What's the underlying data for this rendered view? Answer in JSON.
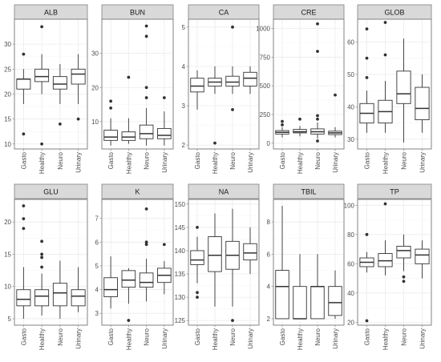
{
  "chart_data": [
    {
      "type": "box",
      "title": "ALB",
      "ylim": [
        9,
        35
      ],
      "yticks": [
        10,
        15,
        20,
        25,
        30
      ],
      "categories": [
        "Gasto",
        "Healthy",
        "Neuro",
        "Urinary"
      ],
      "boxes": [
        {
          "category": "Gasto",
          "whislo": 18,
          "q1": 21,
          "med": 23,
          "q3": 23,
          "whishi": 25,
          "outliers": [
            28,
            12
          ]
        },
        {
          "category": "Healthy",
          "whislo": 20,
          "q1": 22.5,
          "med": 23.5,
          "q3": 25,
          "whishi": 28,
          "outliers": [
            33.5,
            10
          ]
        },
        {
          "category": "Neuro",
          "whislo": 18,
          "q1": 21,
          "med": 22,
          "q3": 23.5,
          "whishi": 26,
          "outliers": [
            14
          ]
        },
        {
          "category": "Urinary",
          "whislo": 18,
          "q1": 22,
          "med": 24,
          "q3": 25,
          "whishi": 28,
          "outliers": [
            15
          ]
        }
      ]
    },
    {
      "type": "box",
      "title": "BUN",
      "ylim": [
        2,
        40
      ],
      "yticks": [
        10,
        20,
        30
      ],
      "categories": [
        "Gasto",
        "Healthy",
        "Neuro",
        "Urinary"
      ],
      "boxes": [
        {
          "category": "Gasto",
          "whislo": 3,
          "q1": 4.5,
          "med": 5.5,
          "q3": 7.5,
          "whishi": 11,
          "outliers": [
            16,
            14
          ]
        },
        {
          "category": "Healthy",
          "whislo": 3.5,
          "q1": 4.5,
          "med": 5.5,
          "q3": 7,
          "whishi": 11,
          "outliers": [
            23
          ]
        },
        {
          "category": "Neuro",
          "whislo": 3,
          "q1": 5,
          "med": 6.5,
          "q3": 9,
          "whishi": 14,
          "outliers": [
            38,
            35,
            20,
            17
          ]
        },
        {
          "category": "Urinary",
          "whislo": 3,
          "q1": 5,
          "med": 6,
          "q3": 8,
          "whishi": 13,
          "outliers": [
            17
          ]
        }
      ]
    },
    {
      "type": "box",
      "title": "CA",
      "ylim": [
        1.9,
        5.2
      ],
      "yticks": [
        2,
        3,
        4,
        5
      ],
      "categories": [
        "Gasto",
        "Healthy",
        "Neuro",
        "Urinary"
      ],
      "boxes": [
        {
          "category": "Gasto",
          "whislo": 2.9,
          "q1": 3.35,
          "med": 3.5,
          "q3": 3.7,
          "whishi": 3.9,
          "outliers": []
        },
        {
          "category": "Healthy",
          "whislo": 3.3,
          "q1": 3.5,
          "med": 3.6,
          "q3": 3.7,
          "whishi": 4.0,
          "outliers": [
            2.05
          ]
        },
        {
          "category": "Neuro",
          "whislo": 3.3,
          "q1": 3.5,
          "med": 3.6,
          "q3": 3.75,
          "whishi": 4.0,
          "outliers": [
            5.0,
            2.9
          ]
        },
        {
          "category": "Urinary",
          "whislo": 3.3,
          "q1": 3.5,
          "med": 3.7,
          "q3": 3.85,
          "whishi": 4.0,
          "outliers": []
        }
      ]
    },
    {
      "type": "box",
      "title": "CRE",
      "ylim": [
        -50,
        1080
      ],
      "yticks": [
        0,
        250,
        500,
        750,
        1000
      ],
      "categories": [
        "Gasto",
        "Healthy",
        "Neuro",
        "Urinary"
      ],
      "boxes": [
        {
          "category": "Gasto",
          "whislo": 50,
          "q1": 80,
          "med": 95,
          "q3": 110,
          "whishi": 140,
          "outliers": [
            190,
            160
          ]
        },
        {
          "category": "Healthy",
          "whislo": 60,
          "q1": 90,
          "med": 100,
          "q3": 120,
          "whishi": 150,
          "outliers": [
            210
          ]
        },
        {
          "category": "Neuro",
          "whislo": 40,
          "q1": 80,
          "med": 100,
          "q3": 125,
          "whishi": 180,
          "outliers": [
            1040,
            800,
            240,
            210,
            20
          ]
        },
        {
          "category": "Urinary",
          "whislo": 50,
          "q1": 75,
          "med": 90,
          "q3": 105,
          "whishi": 140,
          "outliers": [
            420
          ]
        }
      ]
    },
    {
      "type": "box",
      "title": "GLOB",
      "ylim": [
        27,
        67
      ],
      "yticks": [
        30,
        40,
        50,
        60
      ],
      "categories": [
        "Gasto",
        "Healthy",
        "Neuro",
        "Urinary"
      ],
      "boxes": [
        {
          "category": "Gasto",
          "whislo": 32,
          "q1": 35,
          "med": 38,
          "q3": 41,
          "whishi": 45,
          "outliers": [
            64,
            55,
            49
          ]
        },
        {
          "category": "Healthy",
          "whislo": 32,
          "q1": 35,
          "med": 38.5,
          "q3": 42,
          "whishi": 48,
          "outliers": [
            66,
            56
          ]
        },
        {
          "category": "Neuro",
          "whislo": 29,
          "q1": 41,
          "med": 44,
          "q3": 51,
          "whishi": 61,
          "outliers": []
        },
        {
          "category": "Urinary",
          "whislo": 32,
          "q1": 36,
          "med": 39.5,
          "q3": 46,
          "whishi": 50,
          "outliers": []
        }
      ]
    },
    {
      "type": "box",
      "title": "GLU",
      "ylim": [
        4,
        23.5
      ],
      "yticks": [
        5,
        10,
        15,
        20
      ],
      "categories": [
        "Gasto",
        "Healthy",
        "Neuro",
        "Urinary"
      ],
      "boxes": [
        {
          "category": "Gasto",
          "whislo": 5,
          "q1": 7,
          "med": 8,
          "q3": 9.5,
          "whishi": 13,
          "outliers": [
            22.5,
            20.5,
            19
          ]
        },
        {
          "category": "Healthy",
          "whislo": 5.5,
          "q1": 7,
          "med": 8.5,
          "q3": 9.5,
          "whishi": 12,
          "outliers": [
            17,
            15,
            14.5,
            13
          ]
        },
        {
          "category": "Neuro",
          "whislo": 5,
          "q1": 7,
          "med": 9,
          "q3": 10.5,
          "whishi": 14,
          "outliers": []
        },
        {
          "category": "Urinary",
          "whislo": 6,
          "q1": 7,
          "med": 8.5,
          "q3": 9.5,
          "whishi": 13,
          "outliers": []
        }
      ]
    },
    {
      "type": "box",
      "title": "K",
      "ylim": [
        2.5,
        7.8
      ],
      "yticks": [
        3,
        4,
        5,
        6,
        7
      ],
      "categories": [
        "Gasto",
        "Healthy",
        "Neuro",
        "Urinary"
      ],
      "boxes": [
        {
          "category": "Gasto",
          "whislo": 3.2,
          "q1": 3.7,
          "med": 4.0,
          "q3": 4.5,
          "whishi": 5.4,
          "outliers": []
        },
        {
          "category": "Healthy",
          "whislo": 3.4,
          "q1": 4.1,
          "med": 4.4,
          "q3": 4.8,
          "whishi": 4.9,
          "outliers": [
            2.7
          ]
        },
        {
          "category": "Neuro",
          "whislo": 3.5,
          "q1": 4.1,
          "med": 4.3,
          "q3": 4.7,
          "whishi": 5.3,
          "outliers": [
            7.4,
            6.0,
            5.9
          ]
        },
        {
          "category": "Urinary",
          "whislo": 3.8,
          "q1": 4.3,
          "med": 4.6,
          "q3": 4.9,
          "whishi": 5.2,
          "outliers": [
            5.9
          ]
        }
      ]
    },
    {
      "type": "box",
      "title": "NA",
      "ylim": [
        124,
        151
      ],
      "yticks": [
        125,
        130,
        135,
        140,
        145,
        150
      ],
      "categories": [
        "Gasto",
        "Healthy",
        "Neuro",
        "Urinary"
      ],
      "boxes": [
        {
          "category": "Gasto",
          "whislo": 133,
          "q1": 137,
          "med": 138,
          "q3": 140,
          "whishi": 143,
          "outliers": [
            145,
            131,
            130
          ]
        },
        {
          "category": "Healthy",
          "whislo": 128,
          "q1": 135.5,
          "med": 139,
          "q3": 143,
          "whishi": 148,
          "outliers": []
        },
        {
          "category": "Neuro",
          "whislo": 128,
          "q1": 136,
          "med": 139,
          "q3": 142,
          "whishi": 149,
          "outliers": [
            125
          ]
        },
        {
          "category": "Urinary",
          "whislo": 135,
          "q1": 138,
          "med": 139.5,
          "q3": 141.5,
          "whishi": 145,
          "outliers": []
        }
      ]
    },
    {
      "type": "box",
      "title": "TBIL",
      "ylim": [
        1.6,
        9.4
      ],
      "yticks": [
        2,
        4,
        6,
        8
      ],
      "categories": [
        "Gasto",
        "Healthy",
        "Neuro",
        "Urinary"
      ],
      "boxes": [
        {
          "category": "Gasto",
          "whislo": 2,
          "q1": 2,
          "med": 4,
          "q3": 5,
          "whishi": 9,
          "outliers": []
        },
        {
          "category": "Healthy",
          "whislo": 2,
          "q1": 2,
          "med": 2,
          "q3": 4,
          "whishi": 6,
          "outliers": []
        },
        {
          "category": "Neuro",
          "whislo": 2,
          "q1": 2,
          "med": 4,
          "q3": 4,
          "whishi": 6,
          "outliers": []
        },
        {
          "category": "Urinary",
          "whislo": 2,
          "q1": 2.2,
          "med": 3,
          "q3": 4,
          "whishi": 5,
          "outliers": []
        }
      ]
    },
    {
      "type": "box",
      "title": "TP",
      "ylim": [
        18,
        104
      ],
      "yticks": [
        20,
        40,
        60,
        80,
        100
      ],
      "categories": [
        "Gasto",
        "Healthy",
        "Neuro",
        "Urinary"
      ],
      "boxes": [
        {
          "category": "Gasto",
          "whislo": 54,
          "q1": 58,
          "med": 61,
          "q3": 64,
          "whishi": 68,
          "outliers": [
            80,
            21
          ]
        },
        {
          "category": "Healthy",
          "whislo": 52,
          "q1": 58,
          "med": 62,
          "q3": 67,
          "whishi": 76,
          "outliers": [
            101
          ]
        },
        {
          "category": "Neuro",
          "whislo": 55,
          "q1": 64,
          "med": 69,
          "q3": 72,
          "whishi": 80,
          "outliers": [
            51,
            48
          ]
        },
        {
          "category": "Urinary",
          "whislo": 50,
          "q1": 60,
          "med": 66,
          "q3": 70,
          "whishi": 76,
          "outliers": []
        }
      ]
    }
  ]
}
